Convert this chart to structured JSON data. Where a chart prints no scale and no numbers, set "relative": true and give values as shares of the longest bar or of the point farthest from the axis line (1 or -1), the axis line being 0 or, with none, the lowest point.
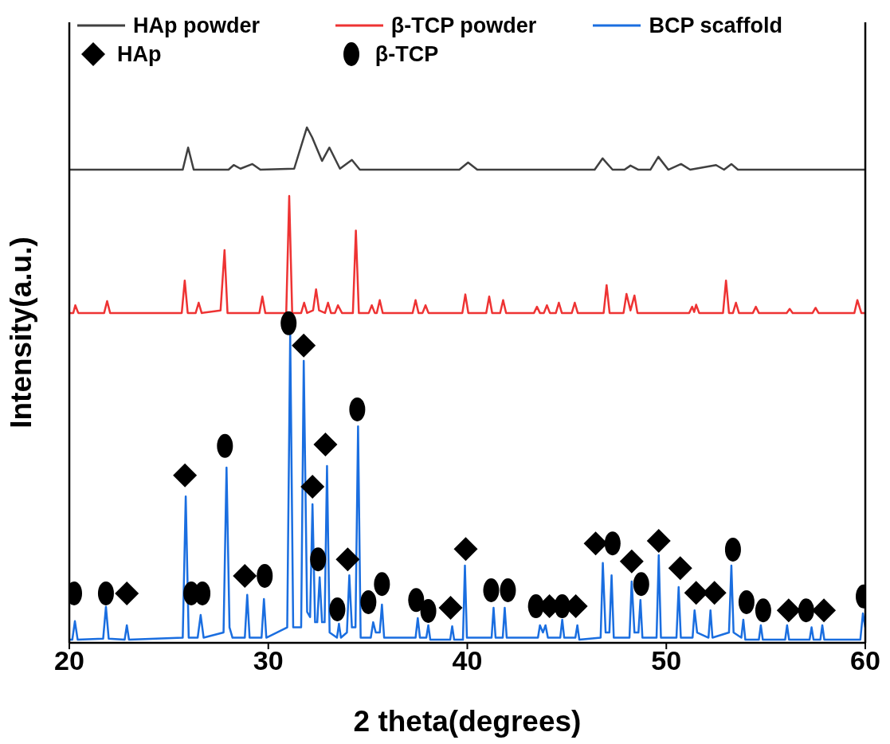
{
  "chart_data": {
    "type": "line",
    "relative": true,
    "xlabel": "2 theta(degrees)",
    "ylabel": "Intensity(a.u.)",
    "xlim": [
      20,
      60
    ],
    "xticks": [
      20,
      30,
      40,
      50,
      60
    ],
    "legend": "top",
    "grid": false,
    "series": [
      {
        "name": "HAp powder",
        "color": "#404040",
        "x": [
          20,
          25.7,
          25.97,
          26.25,
          28.0,
          28.26,
          28.6,
          29.2,
          29.6,
          31.3,
          31.94,
          32.2,
          32.7,
          33.07,
          33.6,
          34.2,
          34.6,
          39.6,
          40.04,
          40.5,
          46.4,
          46.8,
          47.3,
          47.9,
          48.2,
          48.6,
          49.2,
          49.6,
          50.1,
          50.74,
          51.2,
          52.5,
          52.9,
          53.27,
          53.6,
          60
        ],
        "values": [
          0.918,
          0.918,
          0.961,
          0.918,
          0.918,
          0.927,
          0.92,
          0.929,
          0.918,
          0.92,
          1.0,
          0.981,
          0.935,
          0.961,
          0.92,
          0.937,
          0.918,
          0.918,
          0.932,
          0.918,
          0.918,
          0.94,
          0.918,
          0.918,
          0.926,
          0.918,
          0.918,
          0.943,
          0.918,
          0.929,
          0.918,
          0.927,
          0.918,
          0.929,
          0.918,
          0.918
        ]
      },
      {
        "name": "β-TCP powder",
        "color": "#ee3333",
        "x": [
          20,
          20.2,
          20.3,
          20.45,
          21.75,
          21.9,
          22.05,
          25.65,
          25.8,
          25.95,
          26.35,
          26.5,
          26.65,
          27.6,
          27.8,
          27.95,
          29.55,
          29.7,
          29.85,
          30.9,
          31.05,
          31.2,
          31.65,
          31.8,
          31.95,
          32.25,
          32.4,
          32.55,
          32.85,
          33.0,
          33.15,
          33.35,
          33.5,
          33.7,
          34.25,
          34.4,
          34.55,
          35.05,
          35.2,
          35.35,
          35.45,
          35.6,
          35.75,
          37.25,
          37.4,
          37.55,
          37.75,
          37.9,
          38.05,
          39.75,
          39.9,
          40.05,
          40.95,
          41.1,
          41.25,
          41.65,
          41.8,
          41.95,
          43.35,
          43.5,
          43.65,
          43.85,
          44.0,
          44.15,
          44.45,
          44.6,
          44.75,
          45.25,
          45.4,
          45.55,
          46.85,
          47.0,
          47.15,
          47.85,
          48.0,
          48.2,
          48.4,
          48.55,
          51.15,
          51.3,
          51.4,
          51.5,
          51.65,
          52.85,
          53.0,
          53.15,
          53.35,
          53.5,
          53.65,
          54.35,
          54.5,
          54.65,
          56.05,
          56.2,
          56.35,
          57.35,
          57.5,
          57.65,
          59.45,
          59.6,
          59.8,
          60
        ],
        "values": [
          0.64,
          0.64,
          0.655,
          0.64,
          0.64,
          0.663,
          0.64,
          0.64,
          0.703,
          0.64,
          0.64,
          0.66,
          0.64,
          0.645,
          0.762,
          0.64,
          0.64,
          0.672,
          0.64,
          0.64,
          0.867,
          0.64,
          0.64,
          0.66,
          0.64,
          0.645,
          0.686,
          0.645,
          0.64,
          0.66,
          0.64,
          0.64,
          0.655,
          0.64,
          0.64,
          0.8,
          0.64,
          0.64,
          0.655,
          0.64,
          0.64,
          0.665,
          0.64,
          0.64,
          0.665,
          0.64,
          0.64,
          0.655,
          0.64,
          0.64,
          0.676,
          0.64,
          0.64,
          0.672,
          0.64,
          0.64,
          0.665,
          0.64,
          0.64,
          0.652,
          0.64,
          0.64,
          0.655,
          0.64,
          0.64,
          0.66,
          0.64,
          0.64,
          0.66,
          0.64,
          0.64,
          0.694,
          0.64,
          0.64,
          0.677,
          0.645,
          0.674,
          0.64,
          0.64,
          0.652,
          0.642,
          0.656,
          0.64,
          0.64,
          0.703,
          0.64,
          0.64,
          0.66,
          0.64,
          0.64,
          0.652,
          0.64,
          0.64,
          0.648,
          0.64,
          0.64,
          0.65,
          0.64,
          0.64,
          0.665,
          0.64,
          0.64
        ]
      },
      {
        "name": "BCP scaffold",
        "color": "#1a6ee0",
        "x": [
          20,
          20.15,
          20.28,
          20.42,
          21.7,
          21.84,
          21.98,
          22.78,
          22.89,
          23.0,
          25.7,
          25.85,
          26.0,
          26.45,
          26.6,
          26.75,
          27.75,
          27.9,
          28.05,
          28.2,
          28.82,
          28.94,
          29.06,
          29.66,
          29.78,
          29.9,
          30.95,
          31.1,
          31.25,
          31.65,
          31.78,
          31.95,
          32.1,
          32.22,
          32.35,
          32.46,
          32.58,
          32.7,
          32.83,
          32.95,
          33.08,
          33.45,
          33.55,
          33.65,
          33.95,
          34.07,
          34.2,
          34.38,
          34.51,
          34.64,
          35.15,
          35.27,
          35.4,
          35.6,
          35.71,
          35.82,
          37.4,
          37.51,
          37.62,
          37.94,
          38.04,
          38.14,
          39.14,
          39.24,
          39.34,
          39.78,
          39.88,
          39.98,
          41.22,
          41.32,
          41.42,
          41.78,
          41.88,
          41.98,
          43.55,
          43.65,
          43.8,
          43.93,
          44.05,
          44.67,
          44.77,
          44.87,
          45.43,
          45.53,
          45.63,
          46.7,
          46.81,
          46.95,
          47.14,
          47.25,
          47.36,
          48.15,
          48.26,
          48.4,
          48.6,
          48.7,
          48.8,
          49.51,
          49.62,
          49.73,
          50.51,
          50.62,
          50.73,
          51.32,
          51.42,
          51.55,
          52.12,
          52.22,
          52.32,
          53.15,
          53.27,
          53.38,
          53.77,
          53.87,
          53.97,
          54.65,
          54.75,
          54.85,
          55.97,
          56.07,
          56.17,
          57.2,
          57.3,
          57.4,
          57.74,
          57.84,
          57.94,
          59.75,
          59.88,
          60
        ],
        "values": [
          0.006,
          0.006,
          0.042,
          0.006,
          0.008,
          0.07,
          0.008,
          0.006,
          0.034,
          0.006,
          0.01,
          0.284,
          0.01,
          0.01,
          0.054,
          0.01,
          0.02,
          0.34,
          0.03,
          0.01,
          0.01,
          0.093,
          0.01,
          0.01,
          0.085,
          0.01,
          0.03,
          0.6,
          0.03,
          0.03,
          0.547,
          0.06,
          0.05,
          0.269,
          0.04,
          0.04,
          0.127,
          0.04,
          0.04,
          0.343,
          0.02,
          0.01,
          0.037,
          0.01,
          0.02,
          0.131,
          0.03,
          0.03,
          0.42,
          0.01,
          0.01,
          0.04,
          0.02,
          0.02,
          0.074,
          0.01,
          0.01,
          0.048,
          0.01,
          0.01,
          0.034,
          0.006,
          0.006,
          0.032,
          0.006,
          0.006,
          0.15,
          0.01,
          0.01,
          0.068,
          0.01,
          0.01,
          0.068,
          0.01,
          0.01,
          0.034,
          0.02,
          0.034,
          0.01,
          0.01,
          0.045,
          0.01,
          0.01,
          0.034,
          0.006,
          0.01,
          0.155,
          0.02,
          0.02,
          0.131,
          0.01,
          0.01,
          0.119,
          0.02,
          0.02,
          0.083,
          0.01,
          0.01,
          0.17,
          0.01,
          0.01,
          0.108,
          0.01,
          0.01,
          0.063,
          0.02,
          0.01,
          0.063,
          0.01,
          0.02,
          0.15,
          0.02,
          0.01,
          0.045,
          0.006,
          0.006,
          0.034,
          0.006,
          0.006,
          0.034,
          0.006,
          0.006,
          0.03,
          0.006,
          0.006,
          0.034,
          0.006,
          0.006,
          0.057,
          0.03
        ]
      },
      {
        "name": "HAp",
        "color": "#000000",
        "type": "scatter",
        "marker": "diamond",
        "x": [
          22.89,
          25.81,
          28.82,
          31.78,
          32.22,
          32.87,
          33.99,
          39.16,
          39.92,
          44.13,
          45.45,
          46.45,
          48.26,
          49.62,
          50.7,
          51.5,
          52.42,
          56.15,
          57.92
        ],
        "values": [
          0.096,
          0.325,
          0.13,
          0.577,
          0.303,
          0.385,
          0.162,
          0.068,
          0.182,
          0.071,
          0.071,
          0.193,
          0.158,
          0.198,
          0.145,
          0.097,
          0.097,
          0.063,
          0.063
        ]
      },
      {
        "name": "β-TCP",
        "color": "#000000",
        "type": "scatter",
        "marker": "circle",
        "x": [
          20.24,
          21.84,
          26.13,
          26.69,
          27.82,
          29.82,
          31.02,
          32.5,
          33.47,
          34.47,
          35.03,
          35.71,
          37.43,
          38.04,
          41.2,
          42.04,
          43.45,
          44.77,
          47.3,
          48.74,
          53.35,
          54.03,
          54.87,
          57.03,
          59.92
        ],
        "values": [
          0.096,
          0.096,
          0.096,
          0.096,
          0.382,
          0.13,
          0.62,
          0.162,
          0.065,
          0.453,
          0.079,
          0.114,
          0.083,
          0.062,
          0.102,
          0.102,
          0.071,
          0.071,
          0.193,
          0.114,
          0.181,
          0.079,
          0.063,
          0.063,
          0.09
        ]
      }
    ]
  }
}
